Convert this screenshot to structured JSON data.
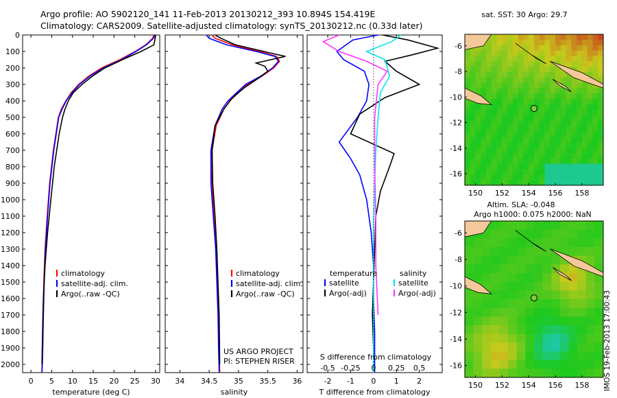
{
  "header": {
    "title_line1": "Argo profile: AO 5902120_141 11-Feb-2013 20130212_393 10.894S 154.419E",
    "title_line2": "Climatology: CARS2009. Satellite-adjusted climatology: synTS_20130212.nc (0.33d later)"
  },
  "side_label": "IMOS 19-Feb-2013 17:00:43",
  "colors": {
    "climatology": "#ff0000",
    "satellite": "#0000ff",
    "argo": "#000000",
    "salinity_sat": "#00e5ee",
    "salinity_argo": "#ff33ff"
  },
  "chart_data": [
    {
      "id": "temperature",
      "type": "line",
      "xlabel": "temperature (deg C)",
      "ylabel": "",
      "xlim": [
        -2,
        31
      ],
      "ylim": [
        2050,
        0
      ],
      "x_ticks": [
        "0",
        "5",
        "10",
        "15",
        "20",
        "25",
        "30"
      ],
      "y_ticks": [
        "0",
        "100",
        "200",
        "300",
        "400",
        "500",
        "600",
        "700",
        "800",
        "900",
        "1000",
        "1100",
        "1200",
        "1300",
        "1400",
        "1500",
        "1600",
        "1700",
        "1800",
        "1900",
        "2000"
      ],
      "legend": [
        "climatology",
        "satellite-adj. clim.",
        "Argo(..raw -QC)"
      ],
      "series": [
        {
          "name": "climatology",
          "color": "#ff0000",
          "x": [
            29.6,
            29.3,
            27.6,
            25.1,
            21.4,
            17.0,
            13.9,
            11.5,
            9.7,
            8.4,
            7.3,
            6.6,
            6.0,
            5.4,
            4.5,
            3.9,
            3.4,
            3.1,
            2.9,
            2.8,
            2.7,
            2.6
          ],
          "y": [
            0,
            20,
            60,
            100,
            150,
            200,
            250,
            300,
            350,
            400,
            450,
            500,
            600,
            700,
            900,
            1100,
            1300,
            1500,
            1700,
            1900,
            2000,
            2050
          ]
        },
        {
          "name": "satellite-adj. clim.",
          "color": "#0000ff",
          "x": [
            29.8,
            29.5,
            27.8,
            25.3,
            21.8,
            17.4,
            14.2,
            11.7,
            9.9,
            8.5,
            7.5,
            6.7,
            6.1,
            5.5,
            4.6,
            4.0,
            3.5,
            3.2,
            3.0,
            2.85,
            2.75,
            2.65
          ],
          "y": [
            0,
            20,
            60,
            100,
            150,
            200,
            250,
            300,
            350,
            400,
            450,
            500,
            600,
            700,
            900,
            1100,
            1300,
            1500,
            1700,
            1900,
            2000,
            2050
          ]
        },
        {
          "name": "Argo(..raw -QC)",
          "color": "#000000",
          "x": [
            30.0,
            29.9,
            29.6,
            26.5,
            22.0,
            17.8,
            14.8,
            12.3,
            10.2,
            9.0,
            8.2,
            7.6,
            6.8,
            6.2,
            5.6,
            4.8,
            4.0,
            3.4,
            3.0,
            2.8,
            2.65
          ],
          "y": [
            0,
            20,
            60,
            100,
            150,
            200,
            250,
            300,
            350,
            400,
            450,
            500,
            600,
            700,
            800,
            1000,
            1200,
            1400,
            1600,
            1800,
            2000
          ]
        }
      ]
    },
    {
      "id": "salinity",
      "type": "line",
      "xlabel": "salinity",
      "xlim": [
        33.75,
        36.1
      ],
      "ylim": [
        2050,
        0
      ],
      "x_ticks": [
        "34",
        "34.5",
        "35",
        "35.5",
        "36"
      ],
      "legend": [
        "climatology",
        "satellite-adj. clim.",
        "Argo(..raw -QC)"
      ],
      "annotation": [
        "US ARGO PROJECT",
        "PI: STEPHEN RISER"
      ],
      "series": [
        {
          "name": "climatology",
          "color": "#ff0000",
          "x": [
            34.55,
            34.6,
            34.9,
            35.35,
            35.65,
            35.7,
            35.6,
            35.4,
            35.15,
            35.0,
            34.85,
            34.75,
            34.62,
            34.55,
            34.55,
            34.58,
            34.62,
            34.64,
            34.66,
            34.67,
            34.68
          ],
          "y": [
            0,
            20,
            60,
            100,
            130,
            160,
            200,
            250,
            300,
            350,
            400,
            450,
            550,
            700,
            900,
            1100,
            1300,
            1500,
            1700,
            1900,
            2050
          ]
        },
        {
          "name": "satellite-adj. clim.",
          "color": "#0000ff",
          "x": [
            34.45,
            34.5,
            34.8,
            35.3,
            35.62,
            35.68,
            35.58,
            35.38,
            35.12,
            34.97,
            34.82,
            34.72,
            34.6,
            34.53,
            34.53,
            34.57,
            34.61,
            34.63,
            34.65,
            34.66,
            34.67
          ],
          "y": [
            0,
            20,
            60,
            100,
            130,
            160,
            200,
            250,
            300,
            350,
            400,
            450,
            550,
            700,
            900,
            1100,
            1300,
            1500,
            1700,
            1900,
            2050
          ]
        },
        {
          "name": "Argo(..raw -QC)",
          "color": "#000000",
          "x": [
            34.6,
            34.7,
            34.95,
            35.55,
            35.8,
            35.55,
            35.3,
            35.45,
            35.5,
            35.35,
            35.1,
            34.9,
            34.75,
            34.6,
            34.55,
            34.56,
            34.6,
            34.63,
            34.65,
            34.67,
            34.68
          ],
          "y": [
            0,
            20,
            60,
            110,
            130,
            150,
            170,
            190,
            220,
            260,
            320,
            380,
            450,
            550,
            700,
            900,
            1100,
            1300,
            1500,
            1700,
            2000
          ]
        }
      ]
    },
    {
      "id": "difference",
      "type": "line",
      "xlabel": "T difference from climatology",
      "xlabel_top": "S difference from climatology",
      "xlim": [
        -2.9,
        3.0
      ],
      "ylim": [
        2050,
        0
      ],
      "x_ticks": [
        "-2",
        "-1",
        "0",
        "1",
        "2"
      ],
      "s_ticks": [
        "-0.5",
        "-0.25",
        "0",
        "0.25",
        "0.5"
      ],
      "legend_left_title": "temperature",
      "legend_right_title": "salinity",
      "legend": [
        "satellite",
        "Argo(-adj)",
        "satellite",
        "Argo(-adj)"
      ],
      "series": [
        {
          "name": "temperature satellite",
          "color": "#0000ff",
          "x": [
            0.2,
            -0.9,
            -1.6,
            -1.3,
            -0.4,
            -0.2,
            -0.3,
            -0.7,
            -1.5,
            -1.0,
            -0.6,
            -0.3,
            -0.1,
            0.0,
            0.0,
            0.05,
            0.05,
            0.05
          ],
          "y": [
            0,
            30,
            100,
            150,
            220,
            300,
            400,
            500,
            650,
            750,
            850,
            1000,
            1200,
            1400,
            1600,
            1800,
            1950,
            2050
          ]
        },
        {
          "name": "temperature Argo(-adj)",
          "color": "#000000",
          "x": [
            0.4,
            1.5,
            2.8,
            1.7,
            0.5,
            1.0,
            2.0,
            0.5,
            -0.6,
            -1.0,
            0.9,
            0.7,
            0.3,
            0.1,
            0.05,
            0.0,
            -0.05,
            0.0
          ],
          "y": [
            0,
            30,
            80,
            120,
            160,
            220,
            300,
            380,
            480,
            600,
            720,
            800,
            950,
            1100,
            1300,
            1500,
            1700,
            1900
          ]
        },
        {
          "name": "salinity satellite",
          "color": "#00e5ee",
          "x": [
            1.2,
            0.8,
            -0.3,
            0.5,
            0.7,
            0.3,
            0.2,
            0.1,
            0.05,
            0.0,
            0.0,
            0.0,
            0.0
          ],
          "y": [
            0,
            40,
            100,
            150,
            250,
            350,
            500,
            700,
            900,
            1200,
            1500,
            1800,
            2050
          ]
        },
        {
          "name": "salinity Argo(-adj)",
          "color": "#ff33ff",
          "x": [
            -1.5,
            -2.2,
            -1.5,
            -0.3,
            0.6,
            0.2,
            0.05,
            0.05,
            0.1,
            0.1,
            0.2
          ],
          "y": [
            0,
            40,
            100,
            160,
            220,
            300,
            500,
            800,
            1100,
            1400,
            1700
          ]
        }
      ]
    },
    {
      "id": "sst-map",
      "type": "heatmap",
      "title": "sat. SST: 30 Argo: 29.7",
      "xlim": [
        149.2,
        159.6
      ],
      "ylim": [
        -16.9,
        -5.1
      ],
      "x_ticks": [
        "150",
        "152",
        "154",
        "156",
        "158"
      ],
      "y_ticks": [
        "-6",
        "-8",
        "-10",
        "-12",
        "-14",
        "-16"
      ],
      "marker": {
        "lon": 154.4,
        "lat": -10.9
      }
    },
    {
      "id": "sla-map",
      "type": "heatmap",
      "title": "Altim. SLA: -0.048",
      "subtitle": "Argo h1000: 0.075 h2000: NaN",
      "xlim": [
        149.2,
        159.6
      ],
      "ylim": [
        -16.9,
        -5.1
      ],
      "x_ticks": [
        "150",
        "152",
        "154",
        "156",
        "158"
      ],
      "y_ticks": [
        "-6",
        "-8",
        "-10",
        "-12",
        "-14",
        "-16"
      ],
      "marker": {
        "lon": 154.4,
        "lat": -10.9
      }
    }
  ]
}
